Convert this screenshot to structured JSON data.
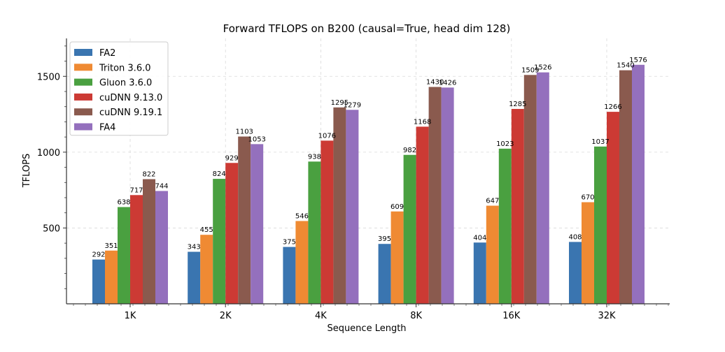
{
  "chart_data": {
    "type": "bar",
    "title": "Forward TFLOPS on B200 (causal=True, head dim 128)",
    "xlabel": "Sequence Length",
    "ylabel": "TFLOPS",
    "categories": [
      "1K",
      "2K",
      "4K",
      "8K",
      "16K",
      "32K"
    ],
    "yticks": [
      500,
      1000,
      1500
    ],
    "ylim": [
      0,
      1750
    ],
    "grid": true,
    "legend_position": "upper-left",
    "series": [
      {
        "name": "FA2",
        "color": "#3a75b0",
        "values": [
          292,
          343,
          375,
          395,
          404,
          408
        ]
      },
      {
        "name": "Triton 3.6.0",
        "color": "#ef8a33",
        "values": [
          351,
          455,
          546,
          609,
          647,
          670
        ]
      },
      {
        "name": "Gluon 3.6.0",
        "color": "#4aa040",
        "values": [
          638,
          824,
          938,
          982,
          1023,
          1037
        ]
      },
      {
        "name": "cuDNN 9.13.0",
        "color": "#cc3a34",
        "values": [
          717,
          929,
          1076,
          1168,
          1285,
          1266
        ]
      },
      {
        "name": "cuDNN 9.19.1",
        "color": "#8a5a4e",
        "values": [
          822,
          1103,
          1295,
          1430,
          1509,
          1540
        ]
      },
      {
        "name": "FA4",
        "color": "#9470bd",
        "values": [
          744,
          1053,
          1279,
          1426,
          1526,
          1576
        ]
      }
    ]
  }
}
